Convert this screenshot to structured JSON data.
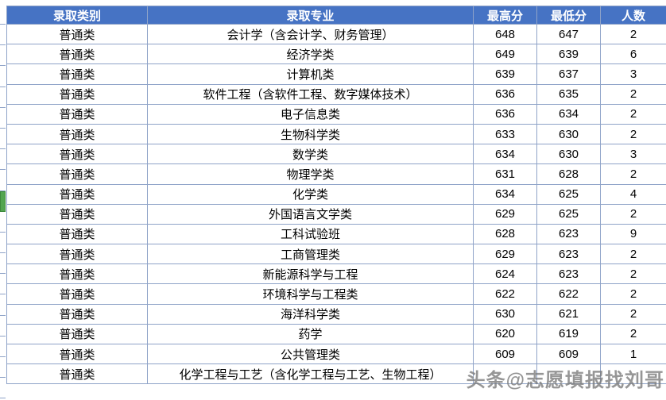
{
  "chart_data": {
    "type": "table",
    "columns": [
      "录取类别",
      "录取专业",
      "最高分",
      "最低分",
      "人数"
    ],
    "rows": [
      [
        "普通类",
        "会计学（含会计学、财务管理）",
        "648",
        "647",
        "2"
      ],
      [
        "普通类",
        "经济学类",
        "649",
        "639",
        "6"
      ],
      [
        "普通类",
        "计算机类",
        "639",
        "637",
        "3"
      ],
      [
        "普通类",
        "软件工程（含软件工程、数字媒体技术）",
        "636",
        "635",
        "2"
      ],
      [
        "普通类",
        "电子信息类",
        "636",
        "634",
        "2"
      ],
      [
        "普通类",
        "生物科学类",
        "633",
        "630",
        "2"
      ],
      [
        "普通类",
        "数学类",
        "634",
        "630",
        "3"
      ],
      [
        "普通类",
        "物理学类",
        "631",
        "628",
        "2"
      ],
      [
        "普通类",
        "化学类",
        "634",
        "625",
        "4"
      ],
      [
        "普通类",
        "外国语言文学类",
        "629",
        "625",
        "2"
      ],
      [
        "普通类",
        "工科试验班",
        "628",
        "623",
        "9"
      ],
      [
        "普通类",
        "工商管理类",
        "629",
        "623",
        "2"
      ],
      [
        "普通类",
        "新能源科学与工程",
        "624",
        "623",
        "2"
      ],
      [
        "普通类",
        "环境科学与工程类",
        "622",
        "622",
        "2"
      ],
      [
        "普通类",
        "海洋科学类",
        "630",
        "621",
        "2"
      ],
      [
        "普通类",
        "药学",
        "620",
        "619",
        "2"
      ],
      [
        "普通类",
        "公共管理类",
        "609",
        "609",
        "1"
      ],
      [
        "普通类",
        "化学工程与工艺（含化学工程与工艺、生物工程）",
        "",
        "",
        ""
      ]
    ]
  },
  "strip": {
    "selected_index": 9,
    "cell_count": 19
  },
  "watermark": {
    "text": "头条@志愿填报找刘哥"
  },
  "colors": {
    "header_bg": "#4673c4",
    "header_text": "#ffffff",
    "border": "#8fa3c8",
    "selection_green": "#53a551"
  }
}
